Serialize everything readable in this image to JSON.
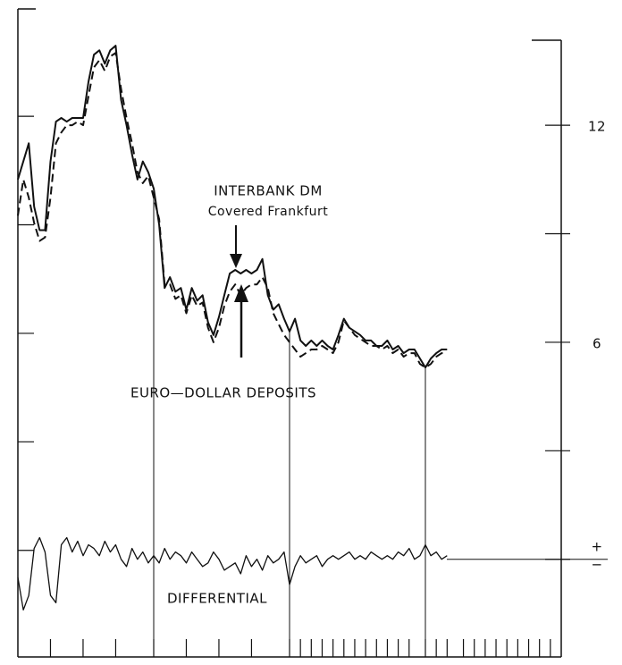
{
  "chart_data": {
    "type": "line",
    "x": [
      0,
      1,
      2,
      3,
      4,
      5,
      6,
      7,
      8,
      9,
      10,
      11,
      12,
      13,
      14,
      15,
      16,
      17,
      18,
      19,
      20,
      21,
      22,
      23,
      24,
      25,
      26,
      27,
      28,
      29,
      30,
      31,
      32,
      33,
      34,
      35,
      36,
      37,
      38,
      39,
      40,
      41,
      42,
      43,
      44,
      45,
      46,
      47,
      48,
      49,
      50,
      51,
      52,
      53,
      54,
      55,
      56,
      57,
      58,
      59,
      60,
      61,
      62,
      63,
      64,
      65,
      66,
      67,
      68,
      69,
      70,
      71,
      72,
      73,
      74,
      75,
      76,
      77,
      78,
      79
    ],
    "series": [
      {
        "name": "INTERBANK DM",
        "color": "#111111",
        "style": "solid",
        "values": [
          10.5,
          11.0,
          11.5,
          9.75,
          9.1,
          9.1,
          11.0,
          12.1,
          12.2,
          12.1,
          12.2,
          12.2,
          12.2,
          13.2,
          13.95,
          14.07,
          13.7,
          14.07,
          14.2,
          12.7,
          12.0,
          11.2,
          10.5,
          11.0,
          10.7,
          10.25,
          9.25,
          7.5,
          7.8,
          7.4,
          7.5,
          6.9,
          7.5,
          7.15,
          7.3,
          6.55,
          6.2,
          6.7,
          7.3,
          7.9,
          8.0,
          7.9,
          8.0,
          7.9,
          8.0,
          8.3,
          7.3,
          6.9,
          7.05,
          6.65,
          6.3,
          6.65,
          6.05,
          5.9,
          6.05,
          5.9,
          6.05,
          5.9,
          5.8,
          6.2,
          6.65,
          6.4,
          6.3,
          6.2,
          6.05,
          6.05,
          5.9,
          5.9,
          6.05,
          5.8,
          5.9,
          5.7,
          5.8,
          5.8,
          5.55,
          5.3,
          5.55,
          5.7,
          5.8,
          5.8
        ]
      },
      {
        "name": "EURO—DOLLAR DEPOSITS",
        "color": "#111111",
        "style": "dashed",
        "values": [
          9.5,
          10.5,
          10.0,
          9.3,
          8.8,
          8.9,
          10.0,
          11.5,
          11.8,
          12.0,
          12.0,
          12.1,
          12.0,
          12.8,
          13.6,
          13.8,
          13.5,
          13.9,
          14.0,
          13.0,
          12.2,
          11.5,
          10.7,
          10.4,
          10.6,
          10.0,
          9.4,
          7.6,
          7.6,
          7.2,
          7.3,
          6.8,
          7.3,
          7.0,
          7.1,
          6.4,
          6.0,
          6.4,
          7.0,
          7.4,
          7.6,
          7.3,
          7.5,
          7.6,
          7.6,
          7.8,
          7.5,
          6.8,
          6.5,
          6.2,
          6.0,
          5.8,
          5.6,
          5.7,
          5.8,
          5.8,
          5.9,
          5.8,
          5.7,
          6.0,
          6.6,
          6.4,
          6.2,
          6.1,
          6.0,
          5.9,
          5.9,
          5.8,
          5.9,
          5.7,
          5.8,
          5.6,
          5.7,
          5.7,
          5.4,
          5.3,
          5.4,
          5.6,
          5.7,
          5.7
        ]
      },
      {
        "name": "DIFFERENTIAL",
        "color": "#111111",
        "style": "thin",
        "values": [
          -0.5,
          -1.4,
          -1.0,
          0.3,
          0.6,
          0.2,
          -1.0,
          -1.2,
          0.4,
          0.6,
          0.2,
          0.5,
          0.1,
          0.4,
          0.3,
          0.1,
          0.5,
          0.2,
          0.4,
          0.0,
          -0.2,
          0.3,
          0.0,
          0.2,
          -0.1,
          0.1,
          -0.1,
          0.3,
          0.0,
          0.2,
          0.1,
          -0.1,
          0.2,
          0.0,
          -0.2,
          -0.1,
          0.2,
          0.0,
          -0.3,
          -0.2,
          -0.1,
          -0.4,
          0.1,
          -0.2,
          0.0,
          -0.3,
          0.1,
          -0.1,
          0.0,
          0.2,
          -0.7,
          -0.2,
          0.1,
          -0.1,
          0.0,
          0.1,
          -0.2,
          0.0,
          0.1,
          0.0,
          0.1,
          0.2,
          0.0,
          0.1,
          0.0,
          0.2,
          0.1,
          0.0,
          0.1,
          0.0,
          0.2,
          0.1,
          0.3,
          0.0,
          0.1,
          0.4,
          0.1,
          0.2,
          0.0,
          0.1
        ]
      }
    ],
    "annotation": "Covered Frankfurt",
    "sign_labels": [
      "+",
      "−"
    ],
    "xlim": [
      0,
      100
    ],
    "ylim": [
      -2.7,
      14.35
    ],
    "yticks": [
      {
        "value": 12,
        "label": "12"
      },
      6
    ],
    "minor_yticks": [
      0,
      3,
      9
    ],
    "xticks": [
      6,
      12,
      18,
      25,
      31,
      37,
      43,
      50,
      52,
      54,
      56,
      58,
      60,
      62,
      64,
      66,
      68,
      70,
      72,
      75,
      77,
      79,
      82,
      84,
      86,
      88,
      90,
      92,
      94,
      96,
      98
    ],
    "vlines": [
      25,
      50,
      75
    ]
  }
}
